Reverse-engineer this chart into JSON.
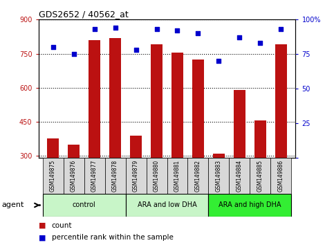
{
  "title": "GDS2652 / 40562_at",
  "samples": [
    "GSM149875",
    "GSM149876",
    "GSM149877",
    "GSM149878",
    "GSM149879",
    "GSM149880",
    "GSM149881",
    "GSM149882",
    "GSM149883",
    "GSM149884",
    "GSM149885",
    "GSM149886"
  ],
  "counts": [
    375,
    350,
    810,
    820,
    390,
    790,
    755,
    725,
    308,
    590,
    455,
    790
  ],
  "percentiles": [
    80,
    75,
    93,
    94,
    78,
    93,
    92,
    90,
    70,
    87,
    83,
    93
  ],
  "group_colors": [
    "#c8f5c8",
    "#c8f5c8",
    "#33ee33"
  ],
  "group_labels": [
    "control",
    "ARA and low DHA",
    "ARA and high DHA"
  ],
  "group_ranges": [
    [
      0,
      3
    ],
    [
      4,
      7
    ],
    [
      8,
      11
    ]
  ],
  "ylim_left": [
    290,
    900
  ],
  "ylim_right": [
    0,
    100
  ],
  "yticks_left": [
    300,
    450,
    600,
    750,
    900
  ],
  "yticks_right": [
    0,
    25,
    50,
    75,
    100
  ],
  "bar_color": "#bb1111",
  "dot_color": "#0000cc",
  "grid_color": "#000000",
  "cell_color": "#d8d8d8",
  "legend_count_label": "count",
  "legend_pct_label": "percentile rank within the sample",
  "agent_label": "agent",
  "bar_width": 0.55
}
